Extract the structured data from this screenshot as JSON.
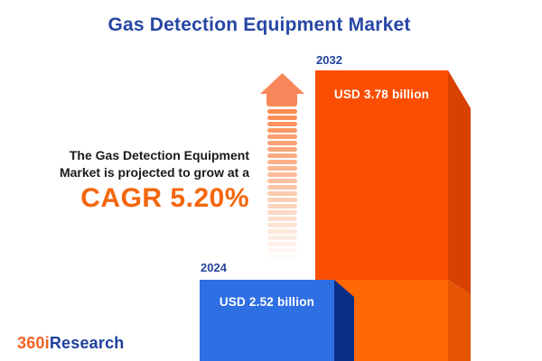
{
  "title": "Gas Detection Equipment Market",
  "description": {
    "line1": "The Gas Detection Equipment",
    "line2": "Market is projected to grow at a",
    "cagr_label": "CAGR 5.20%"
  },
  "chart_data": {
    "type": "bar",
    "title": "Gas Detection Equipment Market",
    "categories": [
      "2024",
      "2032"
    ],
    "values": [
      2.52,
      3.78
    ],
    "unit": "USD billion",
    "value_labels": [
      "USD 2.52 billion",
      "USD 3.78 billion"
    ],
    "cagr_percent": "5.20%",
    "orientation": "vertical",
    "legend_position": "none",
    "grid": false,
    "bar_front_colors": [
      "#2e6fe4",
      "#fc4e03"
    ],
    "bar_side_colors": [
      "#0a2f85",
      "#d84100"
    ],
    "bar_2032_lower_front_color": "#ff6702",
    "bar_2032_lower_side_color": "#e55504"
  },
  "arrow": {
    "direction": "up",
    "color": "#f7875a"
  },
  "logo": {
    "prefix": "360i",
    "suffix": "Research",
    "prefix_color": "#f26122",
    "suffix_color": "#1f3f9e"
  },
  "colors": {
    "title_blue": "#2747a5",
    "year_label_blue": "#24439b",
    "cagr_orange": "#f4660d",
    "text_black": "#1a1a1a",
    "background": "#ffffff"
  }
}
